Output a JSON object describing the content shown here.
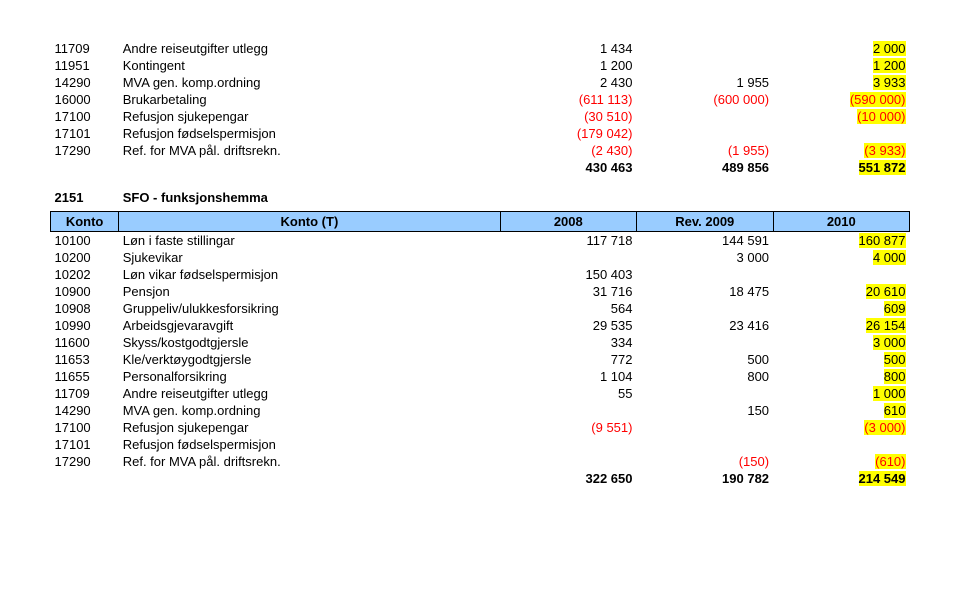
{
  "top_rows": [
    {
      "code": "11709",
      "desc": "Andre reiseutgifter utlegg",
      "c1": "1 434",
      "c2": "",
      "c3": "2 000",
      "c1_red": false,
      "c2_red": false,
      "c3_red": false,
      "c3_yellow": true
    },
    {
      "code": "11951",
      "desc": "Kontingent",
      "c1": "1 200",
      "c2": "",
      "c3": "1 200",
      "c1_red": false,
      "c2_red": false,
      "c3_red": false,
      "c3_yellow": true
    },
    {
      "code": "14290",
      "desc": "MVA gen. komp.ordning",
      "c1": "2 430",
      "c2": "1 955",
      "c3": "3 933",
      "c1_red": false,
      "c2_red": false,
      "c3_red": false,
      "c3_yellow": true
    },
    {
      "code": "16000",
      "desc": "Brukarbetaling",
      "c1": "(611 113)",
      "c2": "(600 000)",
      "c3": "(590 000)",
      "c1_red": true,
      "c2_red": true,
      "c3_red": true,
      "c3_yellow": true
    },
    {
      "code": "17100",
      "desc": "Refusjon sjukepengar",
      "c1": "(30 510)",
      "c2": "",
      "c3": "(10 000)",
      "c1_red": true,
      "c2_red": false,
      "c3_red": true,
      "c3_yellow": true
    },
    {
      "code": "17101",
      "desc": "Refusjon fødselspermisjon",
      "c1": "(179 042)",
      "c2": "",
      "c3": "",
      "c1_red": true,
      "c2_red": false,
      "c3_red": false,
      "c3_yellow": false
    },
    {
      "code": "17290",
      "desc": "Ref. for MVA pål. driftsrekn.",
      "c1": "(2 430)",
      "c2": "(1 955)",
      "c3": "(3 933)",
      "c1_red": true,
      "c2_red": true,
      "c3_red": true,
      "c3_yellow": true
    }
  ],
  "top_total": {
    "c1": "430 463",
    "c2": "489 856",
    "c3": "551 872"
  },
  "section": {
    "code": "2151",
    "desc": "SFO - funksjonshemma"
  },
  "header": {
    "h1": "Konto",
    "h2": "Konto (T)",
    "h3": "2008",
    "h4": "Rev. 2009",
    "h5": "2010"
  },
  "rows2": [
    {
      "code": "10100",
      "desc": "Løn i faste stillingar",
      "c1": "117 718",
      "c2": "144 591",
      "c3": "160 877",
      "c1_red": false,
      "c2_red": false,
      "c3_red": false,
      "c3_yellow": true
    },
    {
      "code": "10200",
      "desc": "Sjukevikar",
      "c1": "",
      "c2": "3 000",
      "c3": "4 000",
      "c1_red": false,
      "c2_red": false,
      "c3_red": false,
      "c3_yellow": true
    },
    {
      "code": "10202",
      "desc": "Løn vikar fødselspermisjon",
      "c1": "150 403",
      "c2": "",
      "c3": "",
      "c1_red": false,
      "c2_red": false,
      "c3_red": false,
      "c3_yellow": false
    },
    {
      "code": "10900",
      "desc": "Pensjon",
      "c1": "31 716",
      "c2": "18 475",
      "c3": "20 610",
      "c1_red": false,
      "c2_red": false,
      "c3_red": false,
      "c3_yellow": true
    },
    {
      "code": "10908",
      "desc": "Gruppeliv/ulukkesforsikring",
      "c1": "564",
      "c2": "",
      "c3": "609",
      "c1_red": false,
      "c2_red": false,
      "c3_red": false,
      "c3_yellow": true
    },
    {
      "code": "10990",
      "desc": "Arbeidsgjevaravgift",
      "c1": "29 535",
      "c2": "23 416",
      "c3": "26 154",
      "c1_red": false,
      "c2_red": false,
      "c3_red": false,
      "c3_yellow": true
    },
    {
      "code": "11600",
      "desc": "Skyss/kostgodtgjersle",
      "c1": "334",
      "c2": "",
      "c3": "3 000",
      "c1_red": false,
      "c2_red": false,
      "c3_red": false,
      "c3_yellow": true
    },
    {
      "code": "11653",
      "desc": "Kle/verktøygodtgjersle",
      "c1": "772",
      "c2": "500",
      "c3": "500",
      "c1_red": false,
      "c2_red": false,
      "c3_red": false,
      "c3_yellow": true
    },
    {
      "code": "11655",
      "desc": "Personalforsikring",
      "c1": "1 104",
      "c2": "800",
      "c3": "800",
      "c1_red": false,
      "c2_red": false,
      "c3_red": false,
      "c3_yellow": true
    },
    {
      "code": "11709",
      "desc": "Andre reiseutgifter utlegg",
      "c1": "55",
      "c2": "",
      "c3": "1 000",
      "c1_red": false,
      "c2_red": false,
      "c3_red": false,
      "c3_yellow": true
    },
    {
      "code": "14290",
      "desc": "MVA gen. komp.ordning",
      "c1": "",
      "c2": "150",
      "c3": "610",
      "c1_red": false,
      "c2_red": false,
      "c3_red": false,
      "c3_yellow": true
    },
    {
      "code": "17100",
      "desc": "Refusjon sjukepengar",
      "c1": "(9 551)",
      "c2": "",
      "c3": "(3 000)",
      "c1_red": true,
      "c2_red": false,
      "c3_red": true,
      "c3_yellow": true
    },
    {
      "code": "17101",
      "desc": "Refusjon fødselspermisjon",
      "c1": "",
      "c2": "",
      "c3": "",
      "c1_red": false,
      "c2_red": false,
      "c3_red": false,
      "c3_yellow": false
    },
    {
      "code": "17290",
      "desc": "Ref. for MVA pål. driftsrekn.",
      "c1": "",
      "c2": "(150)",
      "c3": "(610)",
      "c1_red": false,
      "c2_red": true,
      "c3_red": true,
      "c3_yellow": true
    }
  ],
  "total2": {
    "c1": "322 650",
    "c2": "190 782",
    "c3": "214 549"
  }
}
